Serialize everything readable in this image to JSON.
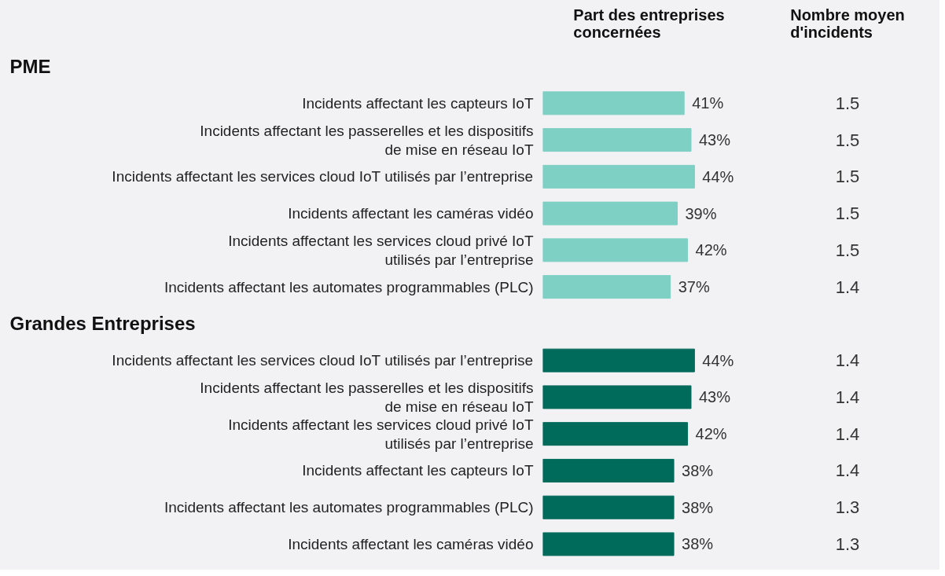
{
  "chart_data": [
    {
      "type": "bar",
      "orientation": "horizontal",
      "title": "Part des entreprises\nconcernées",
      "categories": [
        "Incidents affectant les capteurs IoT",
        "Incidents affectant les passerelles et les dispositifs\nde mise en réseau IoT",
        "Incidents affectant les services cloud IoT utilisés par l’entreprise",
        "Incidents affectant les caméras vidéo",
        "Incidents affectant les services cloud privé IoT\nutilisés par l’entreprise",
        "Incidents affectant les automates programmables (PLC)",
        "Incidents affectant les services cloud IoT utilisés par l’entreprise",
        "Incidents affectant les passerelles et les dispositifs\nde mise en réseau IoT",
        "Incidents affectant les services cloud privé IoT\nutilisés par l’entreprise",
        "Incidents affectant les capteurs IoT",
        "Incidents affectant les automates programmables (PLC)",
        "Incidents affectant les caméras vidéo"
      ],
      "values": [
        41,
        43,
        44,
        39,
        42,
        37,
        44,
        43,
        42,
        38,
        38,
        38
      ],
      "value_labels": [
        "41%",
        "43%",
        "44%",
        "39%",
        "42%",
        "37%",
        "44%",
        "43%",
        "42%",
        "38%",
        "38%",
        "38%"
      ],
      "colors": [
        "#7ecfc4",
        "#7ecfc4",
        "#7ecfc4",
        "#7ecfc4",
        "#7ecfc4",
        "#7ecfc4",
        "#006a5b",
        "#006a5b",
        "#006a5b",
        "#006a5b",
        "#006a5b",
        "#006a5b"
      ],
      "annotations": [
        "PME",
        "Grandes Entreprises"
      ]
    },
    {
      "type": "other",
      "title": "Nombre moyen\nd'incidents",
      "values": [
        1.5,
        1.5,
        1.5,
        1.5,
        1.5,
        1.4,
        1.4,
        1.4,
        1.4,
        1.4,
        1.3,
        1.3
      ],
      "data_labels": true
    }
  ]
}
